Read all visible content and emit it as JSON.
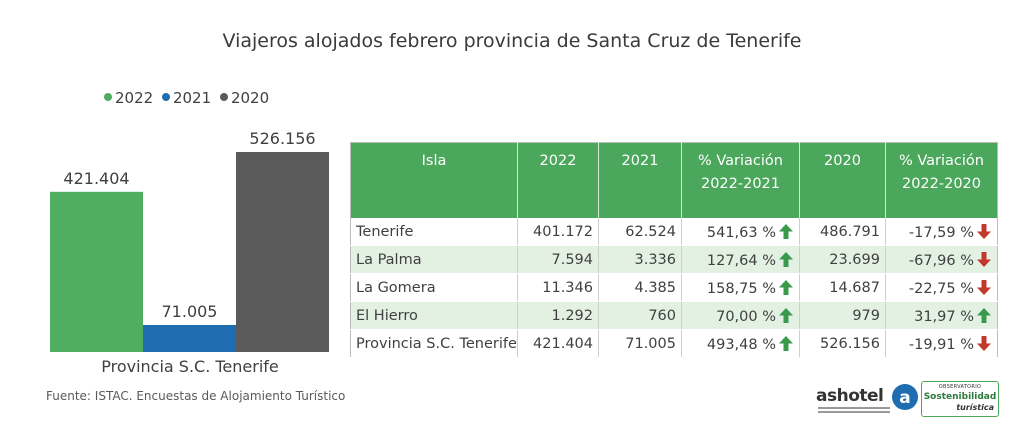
{
  "title": "Viajeros alojados febrero provincia de Santa Cruz de Tenerife",
  "legend": [
    {
      "label": "2022",
      "color": "#4fae62"
    },
    {
      "label": "2021",
      "color": "#1f6cb0"
    },
    {
      "label": "2020",
      "color": "#5a5a5a"
    }
  ],
  "chart_data": {
    "type": "bar",
    "categories": [
      "Provincia S.C. Tenerife"
    ],
    "series": [
      {
        "name": "2022",
        "values": [
          421404
        ],
        "label": "421.404",
        "color": "#4fae62"
      },
      {
        "name": "2021",
        "values": [
          71005
        ],
        "label": "71.005",
        "color": "#1f6cb0"
      },
      {
        "name": "2020",
        "values": [
          526156
        ],
        "label": "526.156",
        "color": "#5a5a5a"
      }
    ],
    "title": "Viajeros alojados febrero provincia de Santa Cruz de Tenerife",
    "xlabel": "",
    "ylabel": "",
    "grid": false,
    "legend_position": "top-left"
  },
  "table": {
    "headers": [
      "Isla",
      "2022",
      "2021",
      "% Variación 2022-2021",
      "2020",
      "% Variación 2022-2020"
    ],
    "rows": [
      {
        "isla": "Tenerife",
        "v2022": "401.172",
        "v2021": "62.524",
        "var1": "541,63 %",
        "var1_dir": "up",
        "v2020": "486.791",
        "var2": "-17,59 %",
        "var2_dir": "down"
      },
      {
        "isla": "La Palma",
        "v2022": "7.594",
        "v2021": "3.336",
        "var1": "127,64 %",
        "var1_dir": "up",
        "v2020": "23.699",
        "var2": "-67,96 %",
        "var2_dir": "down"
      },
      {
        "isla": "La Gomera",
        "v2022": "11.346",
        "v2021": "4.385",
        "var1": "158,75 %",
        "var1_dir": "up",
        "v2020": "14.687",
        "var2": "-22,75 %",
        "var2_dir": "down"
      },
      {
        "isla": "El Hierro",
        "v2022": "1.292",
        "v2021": "760",
        "var1": "70,00 %",
        "var1_dir": "up",
        "v2020": "979",
        "var2": "31,97 %",
        "var2_dir": "up"
      },
      {
        "isla": "Provincia S.C. Tenerife",
        "v2022": "421.404",
        "v2021": "71.005",
        "var1": "493,48 %",
        "var1_dir": "up",
        "v2020": "526.156",
        "var2": "-19,91 %",
        "var2_dir": "down"
      }
    ]
  },
  "colors": {
    "up": "#3a9a4c",
    "down": "#c0392b",
    "header": "#4aa75b"
  },
  "source": "Fuente: ISTAC. Encuestas de Alojamiento Turístico",
  "logos": {
    "ashotel": "ashotel",
    "observatorio_top": "OBSERVATORIO",
    "observatorio_main": "Sostenibilidad",
    "observatorio_sub": "turística"
  }
}
